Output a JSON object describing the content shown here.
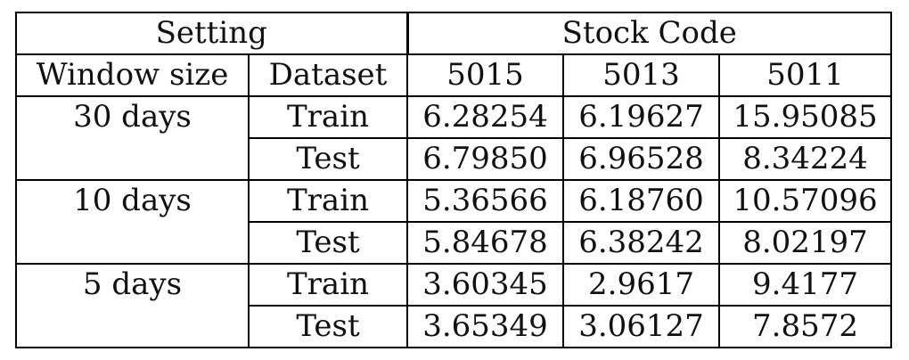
{
  "table": {
    "group_headers": {
      "setting": "Setting",
      "stock_code": "Stock Code"
    },
    "column_headers": [
      "Window size",
      "Dataset",
      "5015",
      "5013",
      "5011"
    ],
    "groups": [
      {
        "window": "30 days",
        "rows": [
          {
            "dataset": "Train",
            "values": [
              "6.28254",
              "6.19627",
              "15.95085"
            ]
          },
          {
            "dataset": "Test",
            "values": [
              "6.79850",
              "6.96528",
              "8.34224"
            ]
          }
        ]
      },
      {
        "window": "10 days",
        "rows": [
          {
            "dataset": "Train",
            "values": [
              "5.36566",
              "6.18760",
              "10.57096"
            ]
          },
          {
            "dataset": "Test",
            "values": [
              "5.84678",
              "6.38242",
              "8.02197"
            ]
          }
        ]
      },
      {
        "window": "5 days",
        "rows": [
          {
            "dataset": "Train",
            "values": [
              "3.60345",
              "2.9617",
              "9.4177"
            ]
          },
          {
            "dataset": "Test",
            "values": [
              "3.65349",
              "3.06127",
              "7.8572"
            ]
          }
        ]
      }
    ]
  }
}
